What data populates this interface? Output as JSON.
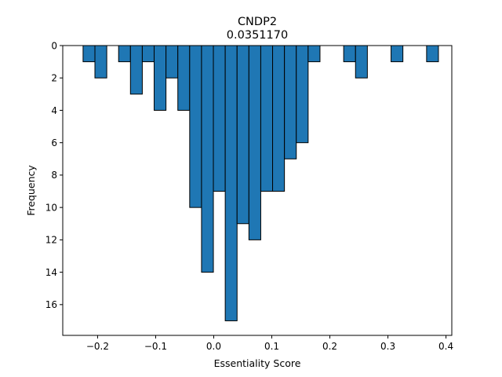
{
  "chart_data": {
    "type": "bar",
    "title": "CNDP2",
    "subtitle": "0.0351170",
    "xlabel": "Essentiality Score",
    "ylabel": "Frequency",
    "xlim": [
      -0.26,
      0.41
    ],
    "ylim": [
      17.9,
      0
    ],
    "y_inverted": true,
    "grid": false,
    "legend": "none",
    "bar_color": "#1f77b4",
    "edge_color": "#000000",
    "bin_width": 0.0204,
    "bins": [
      {
        "x": -0.2148,
        "value": 1
      },
      {
        "x": -0.1944,
        "value": 2
      },
      {
        "x": -0.1536,
        "value": 1
      },
      {
        "x": -0.1332,
        "value": 3
      },
      {
        "x": -0.1128,
        "value": 1
      },
      {
        "x": -0.0924,
        "value": 4
      },
      {
        "x": -0.072,
        "value": 2
      },
      {
        "x": -0.0516,
        "value": 4
      },
      {
        "x": -0.0312,
        "value": 10
      },
      {
        "x": -0.0108,
        "value": 14
      },
      {
        "x": 0.0096,
        "value": 9
      },
      {
        "x": 0.03,
        "value": 17
      },
      {
        "x": 0.0504,
        "value": 11
      },
      {
        "x": 0.0708,
        "value": 12
      },
      {
        "x": 0.0912,
        "value": 9
      },
      {
        "x": 0.1116,
        "value": 9
      },
      {
        "x": 0.132,
        "value": 7
      },
      {
        "x": 0.1524,
        "value": 6
      },
      {
        "x": 0.1728,
        "value": 1
      },
      {
        "x": 0.234,
        "value": 1
      },
      {
        "x": 0.2544,
        "value": 2
      },
      {
        "x": 0.3156,
        "value": 1
      },
      {
        "x": 0.3768,
        "value": 1
      }
    ],
    "x_ticks": [
      {
        "value": -0.2,
        "label": "−0.2"
      },
      {
        "value": -0.1,
        "label": "−0.1"
      },
      {
        "value": 0.0,
        "label": "0.0"
      },
      {
        "value": 0.1,
        "label": "0.1"
      },
      {
        "value": 0.2,
        "label": "0.2"
      },
      {
        "value": 0.3,
        "label": "0.3"
      },
      {
        "value": 0.4,
        "label": "0.4"
      }
    ],
    "y_ticks": [
      {
        "value": 0,
        "label": "0"
      },
      {
        "value": 2,
        "label": "2"
      },
      {
        "value": 4,
        "label": "4"
      },
      {
        "value": 6,
        "label": "6"
      },
      {
        "value": 8,
        "label": "8"
      },
      {
        "value": 10,
        "label": "10"
      },
      {
        "value": 12,
        "label": "12"
      },
      {
        "value": 14,
        "label": "14"
      },
      {
        "value": 16,
        "label": "16"
      }
    ]
  }
}
